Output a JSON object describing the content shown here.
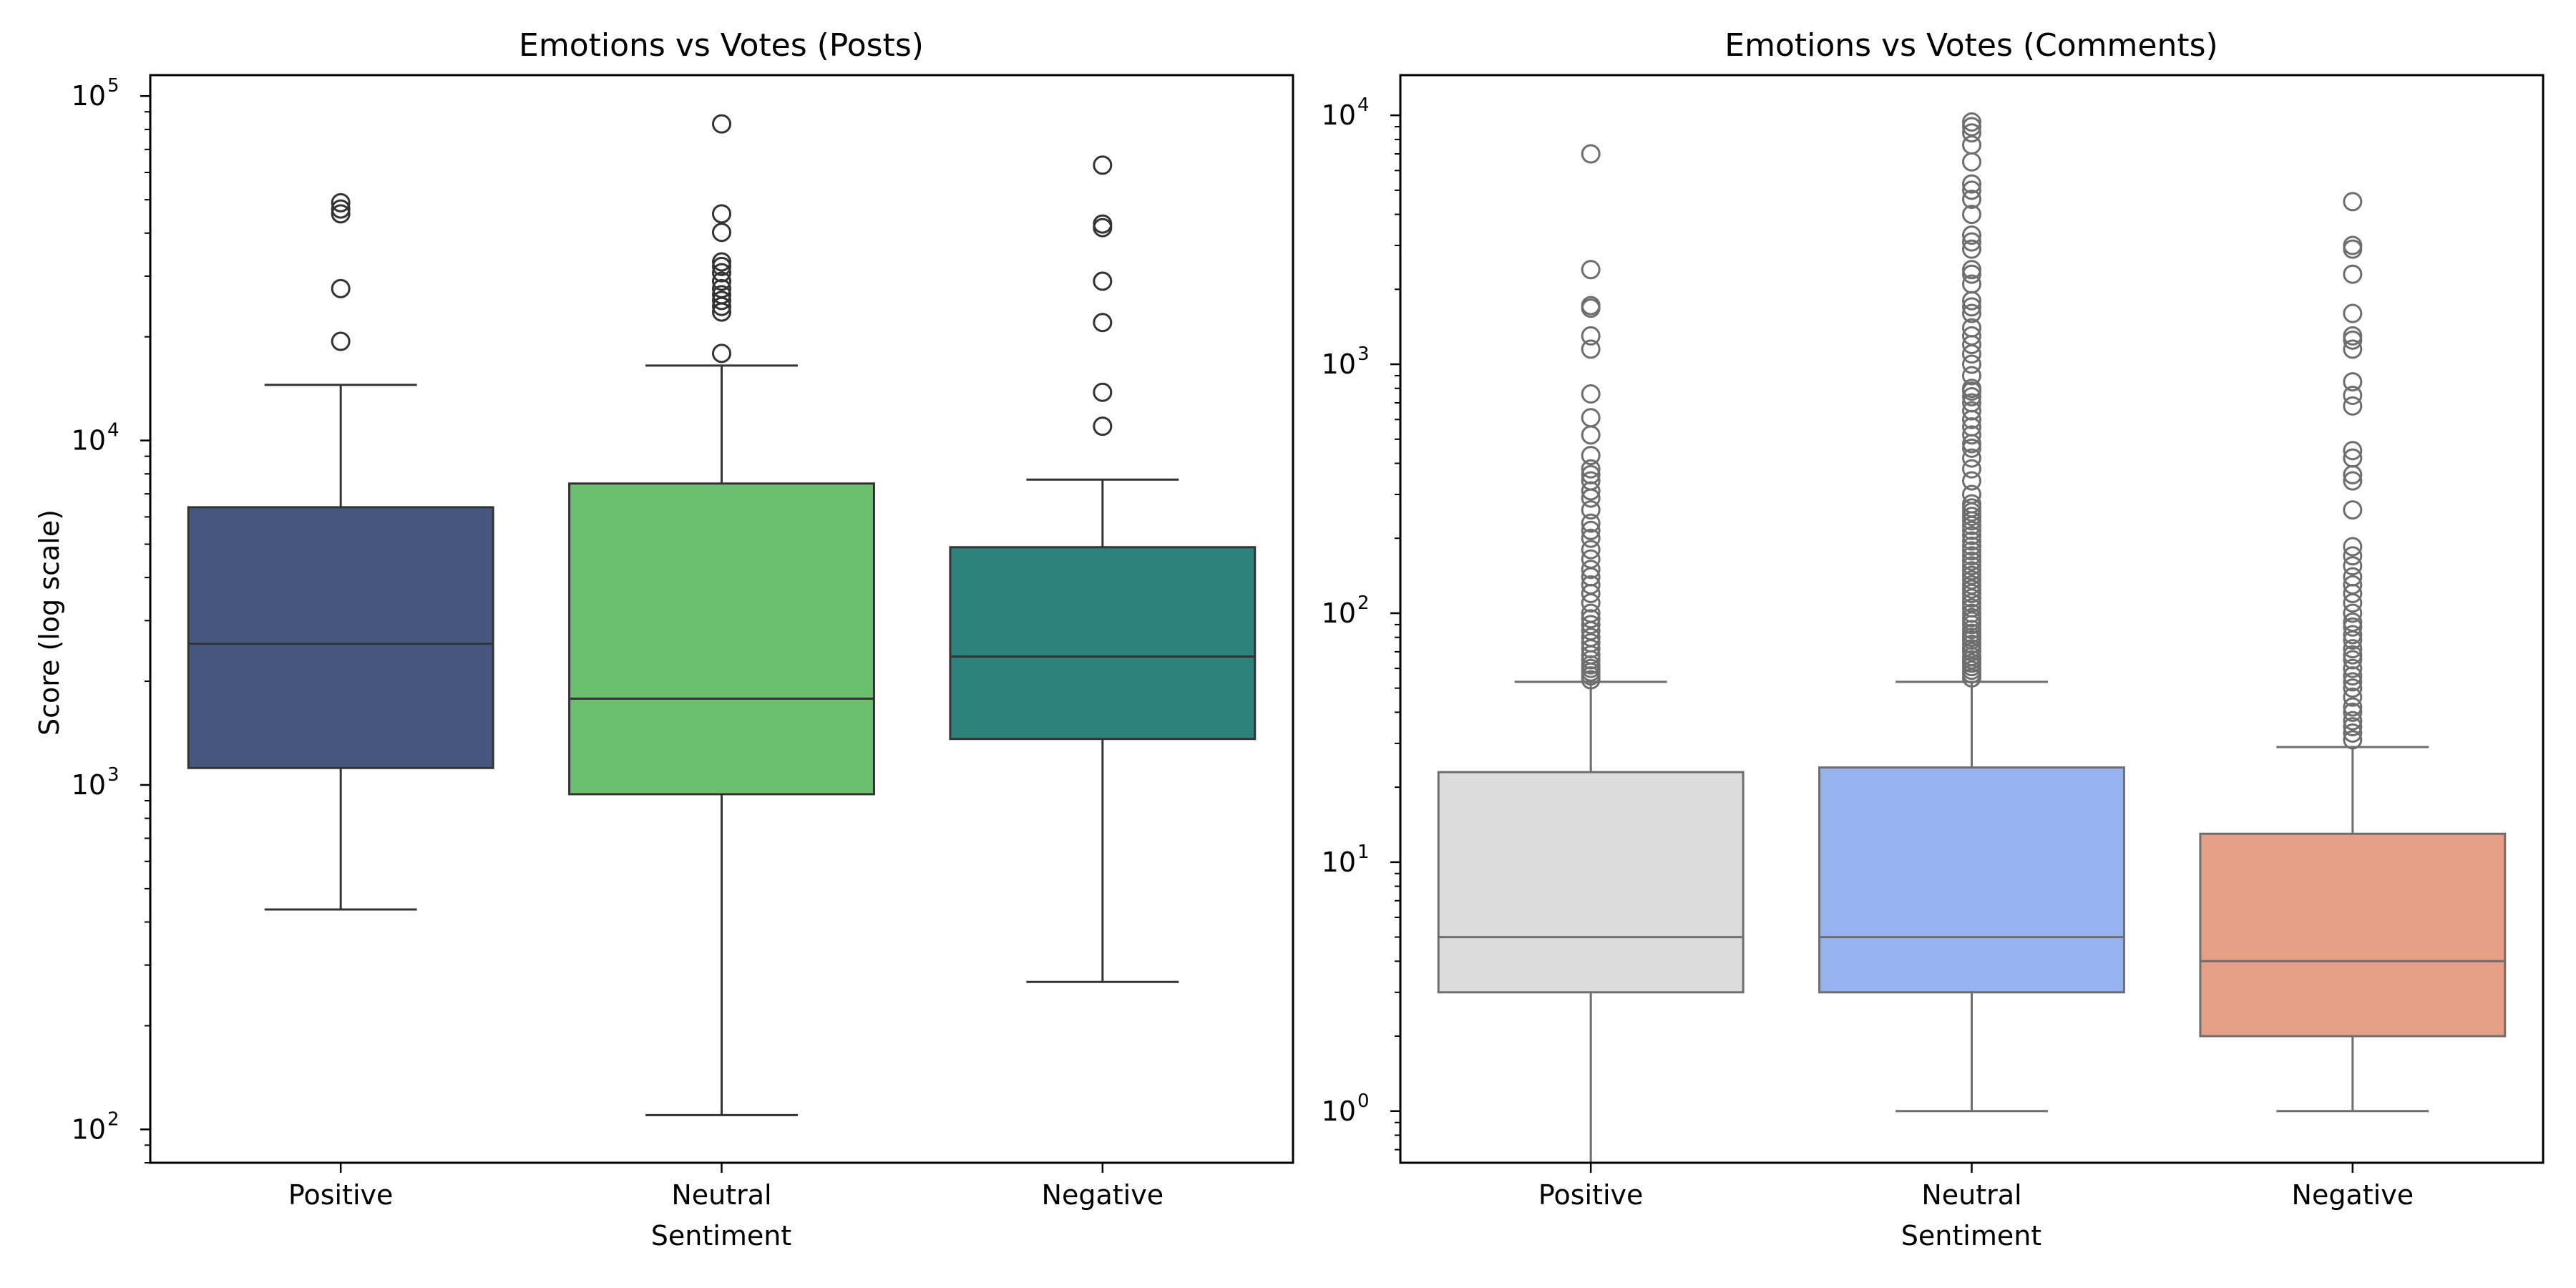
{
  "chart_data": [
    {
      "type": "box",
      "title": "Emotions vs Votes (Posts)",
      "xlabel": "Sentiment",
      "ylabel": "Score (log scale)",
      "yscale": "log",
      "ylim": [
        80,
        115000
      ],
      "ytick_labels": [
        {
          "value": 100,
          "base": "10",
          "exp": "2"
        },
        {
          "value": 1000,
          "base": "10",
          "exp": "3"
        },
        {
          "value": 10000,
          "base": "10",
          "exp": "4"
        },
        {
          "value": 100000,
          "base": "10",
          "exp": "5"
        }
      ],
      "categories": [
        "Positive",
        "Neutral",
        "Negative"
      ],
      "colors": [
        "#46577f",
        "#6bbf6e",
        "#2e827c"
      ],
      "edge_color": "#333333",
      "series": [
        {
          "name": "Positive",
          "whisker_low": 435,
          "q1": 1120,
          "median": 2570,
          "q3": 6400,
          "whisker_high": 14500,
          "outliers": [
            19400,
            27600,
            45500,
            47000,
            49000
          ]
        },
        {
          "name": "Neutral",
          "whisker_low": 110,
          "q1": 940,
          "median": 1780,
          "q3": 7500,
          "whisker_high": 16500,
          "outliers": [
            17900,
            23600,
            24500,
            25500,
            26500,
            27600,
            29000,
            30700,
            32000,
            33000,
            40200,
            45500,
            83000
          ]
        },
        {
          "name": "Negative",
          "whisker_low": 268,
          "q1": 1360,
          "median": 2360,
          "q3": 4900,
          "whisker_high": 7700,
          "outliers": [
            11000,
            13800,
            22000,
            29000,
            41500,
            42500,
            63000
          ]
        }
      ]
    },
    {
      "type": "box",
      "title": "Emotions vs Votes (Comments)",
      "xlabel": "Sentiment",
      "ylabel": "",
      "yscale": "log",
      "ylim": [
        0.62,
        14500
      ],
      "ytick_labels": [
        {
          "value": 1,
          "base": "10",
          "exp": "0"
        },
        {
          "value": 10,
          "base": "10",
          "exp": "1"
        },
        {
          "value": 100,
          "base": "10",
          "exp": "2"
        },
        {
          "value": 1000,
          "base": "10",
          "exp": "3"
        },
        {
          "value": 10000,
          "base": "10",
          "exp": "4"
        }
      ],
      "categories": [
        "Positive",
        "Neutral",
        "Negative"
      ],
      "colors": [
        "#dcdcdc",
        "#97b3ef",
        "#e49f86"
      ],
      "edge_color": "#6e6e6e",
      "series": [
        {
          "name": "Positive",
          "whisker_low": 0.5,
          "q1": 3,
          "median": 5,
          "q3": 23,
          "whisker_high": 53,
          "outliers": [
            54,
            56,
            58,
            60,
            62,
            65,
            68,
            72,
            76,
            80,
            85,
            90,
            95,
            100,
            110,
            120,
            130,
            140,
            150,
            165,
            180,
            200,
            215,
            230,
            260,
            290,
            310,
            340,
            360,
            380,
            430,
            520,
            610,
            760,
            1150,
            1300,
            1680,
            1720,
            2400,
            7000
          ]
        },
        {
          "name": "Neutral",
          "whisker_low": 1,
          "q1": 3,
          "median": 5,
          "q3": 24,
          "whisker_high": 53,
          "outliers": [
            55,
            57,
            59,
            61,
            63,
            65,
            67,
            70,
            72,
            75,
            78,
            80,
            83,
            86,
            90,
            93,
            96,
            100,
            105,
            110,
            115,
            120,
            125,
            130,
            136,
            142,
            148,
            155,
            162,
            170,
            178,
            186,
            195,
            205,
            215,
            225,
            235,
            245,
            255,
            265,
            275,
            300,
            340,
            380,
            420,
            460,
            480,
            520,
            560,
            600,
            650,
            700,
            740,
            780,
            800,
            900,
            1000,
            1100,
            1200,
            1300,
            1400,
            1600,
            1700,
            1800,
            2100,
            2300,
            2400,
            2900,
            3100,
            3300,
            4000,
            4600,
            5000,
            5300,
            6500,
            7600,
            8500,
            9000,
            9400
          ]
        },
        {
          "name": "Negative",
          "whisker_low": 1,
          "q1": 2,
          "median": 4,
          "q3": 13,
          "whisker_high": 29,
          "outliers": [
            31,
            33,
            35,
            37,
            40,
            42,
            46,
            50,
            53,
            56,
            60,
            65,
            68,
            72,
            78,
            82,
            88,
            92,
            100,
            110,
            120,
            130,
            140,
            155,
            170,
            185,
            260,
            340,
            360,
            420,
            450,
            680,
            750,
            850,
            1150,
            1250,
            1300,
            1600,
            2300,
            2900,
            3000,
            4500
          ]
        }
      ]
    }
  ]
}
